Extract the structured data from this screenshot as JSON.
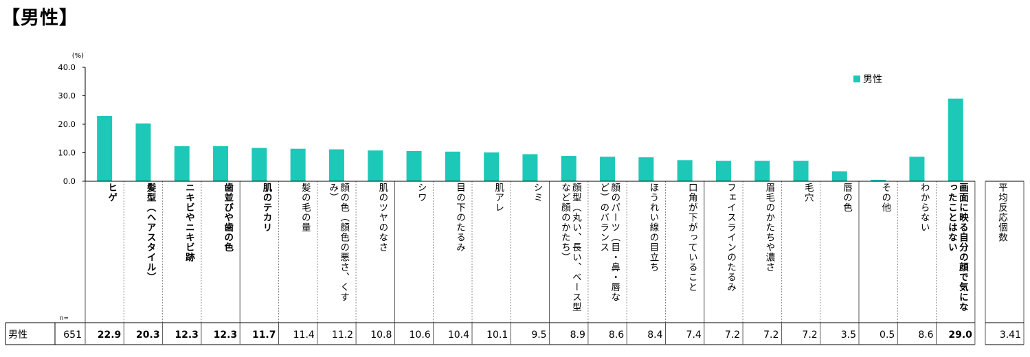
{
  "header": {
    "title": "【男性】"
  },
  "chart_data": {
    "type": "bar",
    "unit_label": "(%)",
    "yticks": [
      "40.0",
      "30.0",
      "20.0",
      "10.0",
      "0.0"
    ],
    "ylim": [
      0,
      40
    ],
    "legend": "男性",
    "n_label": "n=",
    "row_label": "男性",
    "n_value": "651",
    "categories": [
      "ヒゲ",
      "髪型（ヘアスタイル）",
      "ニキビやニキビ跡",
      "歯並びや歯の色",
      "肌のテカリ",
      "髪の毛の量",
      "顔の色（顔色の悪さ、くすみ）",
      "肌のツヤのなさ",
      "シワ",
      "目の下のたるみ",
      "肌アレ",
      "シミ",
      "顔型（丸い、長い、ベース型など顔のかたち）",
      "顔のパーツ（目・鼻・唇など）のバランス",
      "ほうれい線の目立ち",
      "口角が下がっていること",
      "フェイスラインのたるみ",
      "眉毛のかたちや濃さ",
      "毛穴",
      "唇の色",
      "その他",
      "わからない",
      "画面に映る自分の顔で気になったことはない"
    ],
    "values": [
      22.9,
      20.3,
      12.3,
      12.3,
      11.7,
      11.4,
      11.2,
      10.8,
      10.6,
      10.4,
      10.1,
      9.5,
      8.9,
      8.6,
      8.4,
      7.4,
      7.2,
      7.2,
      7.2,
      3.5,
      0.5,
      8.6,
      29.0
    ],
    "value_labels": [
      "22.9",
      "20.3",
      "12.3",
      "12.3",
      "11.7",
      "11.4",
      "11.2",
      "10.8",
      "10.6",
      "10.4",
      "10.1",
      "9.5",
      "8.9",
      "8.6",
      "8.4",
      "7.4",
      "7.2",
      "7.2",
      "7.2",
      "3.5",
      "0.5",
      "8.6",
      "29.0"
    ],
    "bold_categories": [
      0,
      1,
      2,
      3,
      4,
      22
    ],
    "avg_label": "平均反応個数",
    "avg_value": "3.41",
    "bar_color": "#1ec8b8"
  }
}
